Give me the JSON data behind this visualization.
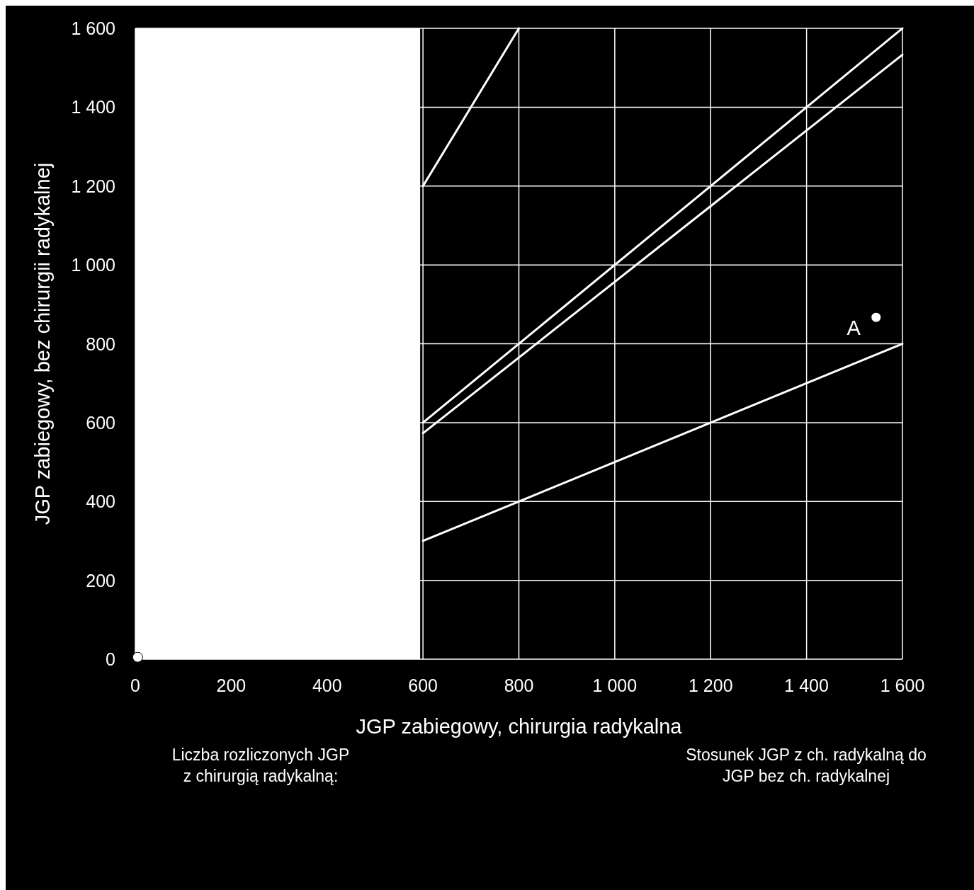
{
  "chart_data": {
    "type": "line",
    "xlabel": "JGP zabiegowy, chirurgia radykalna",
    "ylabel": "JGP zabiegowy, bez chirurgii radykalnej",
    "xlim": [
      0,
      1600
    ],
    "ylim": [
      0,
      1600
    ],
    "xticks": [
      0,
      200,
      400,
      600,
      800,
      {
        "value": 1000,
        "label": "1 000"
      },
      {
        "value": 1200,
        "label": "1 200"
      },
      {
        "value": 1400,
        "label": "1 400"
      },
      {
        "value": 1600,
        "label": "1 600"
      }
    ],
    "yticks": [
      0,
      200,
      400,
      600,
      800,
      {
        "value": 1000,
        "label": "1 000"
      },
      {
        "value": 1200,
        "label": "1 200"
      },
      {
        "value": 1400,
        "label": "1 400"
      },
      {
        "value": 1600,
        "label": "1 600"
      }
    ],
    "grid": true,
    "marker": "none",
    "line_style": "solid",
    "bands": [
      {
        "axis": "x",
        "from": 0,
        "to": 600,
        "color": "#ffffff"
      }
    ],
    "series": [
      {
        "color": "#ffffff",
        "x": [
          600,
          800
        ],
        "values": [
          1200,
          1600
        ]
      },
      {
        "color": "#ffffff",
        "x": [
          600,
          1600
        ],
        "values": [
          600,
          1600
        ]
      },
      {
        "color": "#ffffff",
        "x": [
          600,
          1600
        ],
        "values": [
          573,
          1533
        ]
      },
      {
        "color": "#ffffff",
        "x": [
          600,
          1600
        ],
        "values": [
          300,
          800
        ]
      },
      {
        "type": "scatter",
        "marker": "circle",
        "color": "#ffffff",
        "x": [
          5
        ],
        "values": [
          5
        ]
      },
      {
        "type": "scatter",
        "marker": "circle",
        "color": "#ffffff",
        "x": [
          1545
        ],
        "values": [
          867
        ]
      }
    ],
    "annotations": [
      {
        "text": "A",
        "x": 1545,
        "y": 867
      },
      "Liczba rozliczonych JGP\nz chirurgią radykalną:",
      "Stosunek JGP z ch. radykalną do\nJGP bez ch. radykalnej"
    ]
  }
}
